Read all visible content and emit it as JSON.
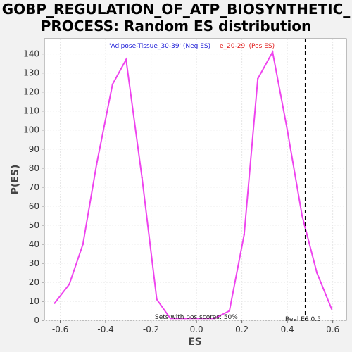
{
  "chart_data": {
    "type": "line",
    "title_line1": "GOBP_REGULATION_OF_ATP_BIOSYNTHETIC_",
    "title_line2": "PROCESS: Random ES distribution",
    "xlabel": "ES",
    "ylabel": "P(ES)",
    "xlim": [
      -0.67,
      0.66
    ],
    "ylim": [
      0,
      148
    ],
    "x_ticks": [
      -0.6,
      -0.4,
      -0.2,
      0.0,
      0.2,
      0.4,
      0.6
    ],
    "x_tick_labels": [
      "-0.6",
      "-0.4",
      "-0.2",
      "0.0",
      "0.2",
      "0.4",
      "0.6"
    ],
    "y_ticks": [
      0,
      10,
      20,
      30,
      40,
      50,
      60,
      70,
      80,
      90,
      100,
      110,
      120,
      130,
      140
    ],
    "y_tick_labels": [
      "0",
      "10",
      "20",
      "30",
      "40",
      "50",
      "60",
      "70",
      "80",
      "90",
      "100",
      "110",
      "120",
      "130",
      "140"
    ],
    "grid": true,
    "line_color": "#ee44ee",
    "legend_neg": "'Adipose-Tissue_30-39' (Neg ES)",
    "legend_pos": "e_20-29' (Pos ES)",
    "legend_neg_color": "#1a1ad6",
    "legend_pos_color": "#e01a1a",
    "series": [
      {
        "x": [
          -0.625,
          -0.56,
          -0.5,
          -0.44,
          -0.37,
          -0.31,
          -0.24,
          -0.175,
          -0.115,
          -0.05,
          0.01,
          0.08,
          0.145,
          0.21,
          0.27,
          0.335,
          0.4,
          0.465,
          0.53,
          0.595
        ],
        "y": [
          9,
          19,
          40,
          82,
          124,
          137,
          75,
          11,
          1,
          1,
          1,
          1,
          5,
          45,
          127,
          141,
          100,
          55,
          25,
          6
        ]
      }
    ],
    "real_es": 0.48,
    "real_es_label": "Real ES 0.5",
    "pos_scores_label": "Sets with pos scores: 50%"
  }
}
